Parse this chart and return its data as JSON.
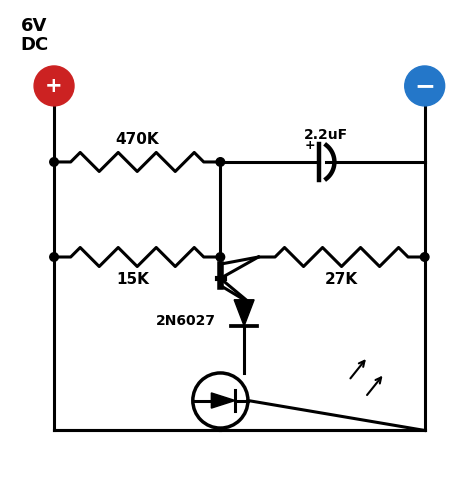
{
  "bg_color": "#ffffff",
  "line_color": "#000000",
  "lw": 2.2,
  "pos_color": "#cc2222",
  "neg_color": "#2477c9",
  "voltage_label": "6V\nDC",
  "r1_label": "470K",
  "r2_label": "15K",
  "r3_label": "27K",
  "cap_label": "2.2uF",
  "cap_plus": "+",
  "transistor_label": "2N6027",
  "figsize": [
    4.74,
    4.95
  ],
  "dpi": 100,
  "xlim": [
    0,
    9.5
  ],
  "ylim": [
    0,
    10.0
  ]
}
